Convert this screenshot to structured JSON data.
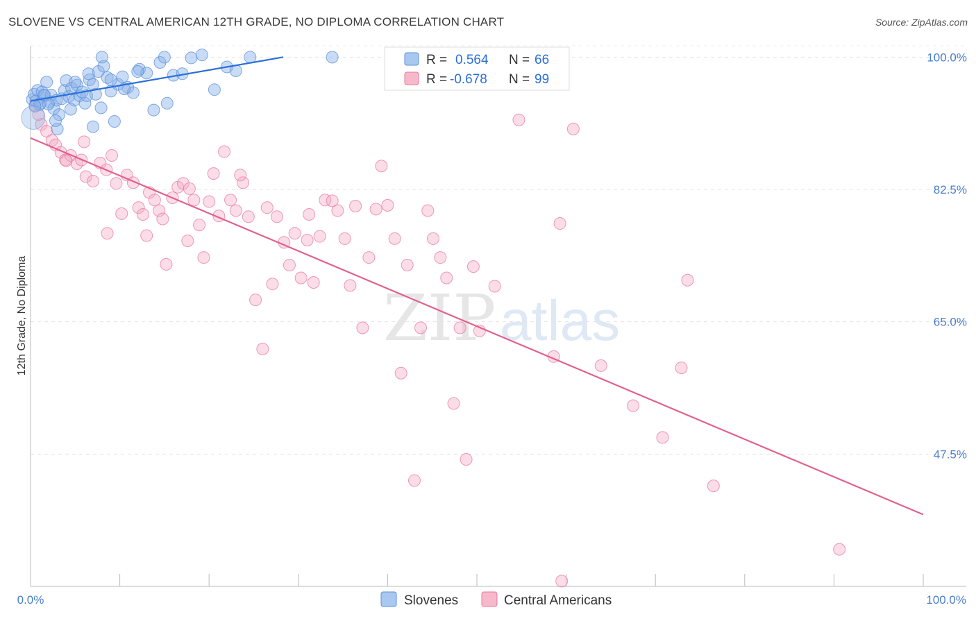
{
  "header": {
    "title": "SLOVENE VS CENTRAL AMERICAN 12TH GRADE, NO DIPLOMA CORRELATION CHART",
    "source": "Source: ZipAtlas.com"
  },
  "watermark": {
    "zip": "ZIP",
    "atlas": "atlas"
  },
  "legend": {
    "r_label": "R =",
    "n_label": "N =",
    "series": [
      {
        "name": "Slovenes",
        "r": "0.564",
        "n": "66",
        "color": "#5b8fdb",
        "fill": "#a9c8f0"
      },
      {
        "name": "Central Americans",
        "r": "-0.678",
        "n": "99",
        "color": "#e8799d",
        "fill": "#f6b9cc"
      }
    ]
  },
  "chart_data": {
    "type": "scatter",
    "title": "SLOVENE VS CENTRAL AMERICAN 12TH GRADE, NO DIPLOMA CORRELATION CHART",
    "xlabel": "",
    "ylabel": "12th Grade, No Diploma",
    "xlim": [
      0,
      100
    ],
    "ylim": [
      30,
      101.5
    ],
    "x_tick_labels": [
      "0.0%",
      "100.0%"
    ],
    "y_ticks": [
      47.5,
      65.0,
      82.5,
      100.0
    ],
    "y_tick_labels": [
      "47.5%",
      "65.0%",
      "82.5%",
      "100.0%"
    ],
    "grid": true,
    "legend_position": "top-center",
    "series": [
      {
        "name": "Slovenes",
        "color": "#5b8fdb",
        "trend": {
          "x": [
            0.0,
            28.3
          ],
          "y": [
            94.2,
            100.0
          ]
        },
        "points": [
          [
            0.2,
            94.4
          ],
          [
            0.4,
            95.1
          ],
          [
            0.6,
            94.2
          ],
          [
            0.8,
            95.6
          ],
          [
            1.1,
            93.9
          ],
          [
            1.3,
            95.4
          ],
          [
            1.6,
            94.9
          ],
          [
            1.8,
            96.7
          ],
          [
            2.1,
            94.1
          ],
          [
            2.3,
            95.0
          ],
          [
            2.6,
            93.2
          ],
          [
            2.9,
            94.3
          ],
          [
            3.2,
            92.4
          ],
          [
            3.5,
            94.5
          ],
          [
            3.8,
            95.6
          ],
          [
            4.0,
            96.9
          ],
          [
            4.3,
            94.8
          ],
          [
            4.6,
            95.9
          ],
          [
            4.9,
            94.3
          ],
          [
            5.2,
            96.3
          ],
          [
            5.5,
            94.9
          ],
          [
            5.8,
            95.4
          ],
          [
            6.1,
            93.9
          ],
          [
            6.3,
            94.9
          ],
          [
            6.6,
            97.0
          ],
          [
            7.0,
            96.4
          ],
          [
            7.3,
            95.1
          ],
          [
            7.6,
            98.1
          ],
          [
            7.9,
            93.3
          ],
          [
            8.2,
            98.8
          ],
          [
            8.6,
            97.3
          ],
          [
            9.0,
            95.5
          ],
          [
            9.4,
            91.5
          ],
          [
            9.8,
            96.4
          ],
          [
            10.3,
            97.4
          ],
          [
            10.9,
            96.0
          ],
          [
            11.5,
            95.3
          ],
          [
            12.2,
            98.4
          ],
          [
            13.0,
            97.9
          ],
          [
            13.8,
            93.0
          ],
          [
            14.5,
            99.3
          ],
          [
            15.3,
            93.9
          ],
          [
            16.0,
            97.6
          ],
          [
            17.0,
            97.8
          ],
          [
            18.0,
            99.9
          ],
          [
            19.2,
            100.3
          ],
          [
            20.6,
            95.7
          ],
          [
            22.0,
            98.7
          ],
          [
            23.0,
            98.2
          ],
          [
            24.6,
            100.0
          ],
          [
            33.8,
            100.0
          ],
          [
            8.0,
            100.0
          ],
          [
            15.0,
            100.0
          ],
          [
            7.0,
            90.8
          ],
          [
            4.5,
            93.1
          ],
          [
            3.0,
            90.5
          ],
          [
            1.0,
            93.7
          ],
          [
            10.5,
            95.8
          ],
          [
            6.5,
            97.8
          ],
          [
            2.0,
            93.8
          ],
          [
            5.0,
            96.7
          ],
          [
            9.0,
            97.0
          ],
          [
            12.0,
            98.1
          ],
          [
            0.5,
            93.5
          ],
          [
            1.5,
            95.0
          ],
          [
            2.8,
            91.6
          ]
        ]
      },
      {
        "name": "Central Americans",
        "color": "#e8799d",
        "trend": {
          "x": [
            0.0,
            100.0
          ],
          "y": [
            89.3,
            39.5
          ]
        },
        "points": [
          [
            0.5,
            93.6
          ],
          [
            0.9,
            92.4
          ],
          [
            1.2,
            91.1
          ],
          [
            1.8,
            90.2
          ],
          [
            2.4,
            89.0
          ],
          [
            2.8,
            88.4
          ],
          [
            3.4,
            87.4
          ],
          [
            3.9,
            86.4
          ],
          [
            4.5,
            87.0
          ],
          [
            5.2,
            85.9
          ],
          [
            5.7,
            86.4
          ],
          [
            6.2,
            84.2
          ],
          [
            7.0,
            83.6
          ],
          [
            7.8,
            86.0
          ],
          [
            8.5,
            85.1
          ],
          [
            9.1,
            87.0
          ],
          [
            9.6,
            83.3
          ],
          [
            10.2,
            79.3
          ],
          [
            10.8,
            84.4
          ],
          [
            11.5,
            83.4
          ],
          [
            12.1,
            80.1
          ],
          [
            12.6,
            79.2
          ],
          [
            13.3,
            82.1
          ],
          [
            13.9,
            81.1
          ],
          [
            14.4,
            79.7
          ],
          [
            14.8,
            78.6
          ],
          [
            15.2,
            72.6
          ],
          [
            15.9,
            81.4
          ],
          [
            16.5,
            82.8
          ],
          [
            17.1,
            83.3
          ],
          [
            17.6,
            75.7
          ],
          [
            18.3,
            81.1
          ],
          [
            18.9,
            77.8
          ],
          [
            19.4,
            73.5
          ],
          [
            20.0,
            80.9
          ],
          [
            20.5,
            84.6
          ],
          [
            21.1,
            79.0
          ],
          [
            21.7,
            87.5
          ],
          [
            22.4,
            81.1
          ],
          [
            23.0,
            79.7
          ],
          [
            23.8,
            83.4
          ],
          [
            24.4,
            78.9
          ],
          [
            25.2,
            67.9
          ],
          [
            26.0,
            61.4
          ],
          [
            26.5,
            80.1
          ],
          [
            27.1,
            70.0
          ],
          [
            27.6,
            78.9
          ],
          [
            28.4,
            75.5
          ],
          [
            29.0,
            72.5
          ],
          [
            29.6,
            76.7
          ],
          [
            30.3,
            70.8
          ],
          [
            31.0,
            75.8
          ],
          [
            31.7,
            70.2
          ],
          [
            32.4,
            76.3
          ],
          [
            33.0,
            81.1
          ],
          [
            33.8,
            81.0
          ],
          [
            34.4,
            79.7
          ],
          [
            35.2,
            76.0
          ],
          [
            35.8,
            69.8
          ],
          [
            36.4,
            80.3
          ],
          [
            37.2,
            64.2
          ],
          [
            37.9,
            73.5
          ],
          [
            38.7,
            79.9
          ],
          [
            39.3,
            85.6
          ],
          [
            40.0,
            80.4
          ],
          [
            40.8,
            76.0
          ],
          [
            41.5,
            58.2
          ],
          [
            42.2,
            72.5
          ],
          [
            43.0,
            44.0
          ],
          [
            43.7,
            64.2
          ],
          [
            44.5,
            79.7
          ],
          [
            45.1,
            76.0
          ],
          [
            45.9,
            73.5
          ],
          [
            46.6,
            70.8
          ],
          [
            47.4,
            54.2
          ],
          [
            48.1,
            64.2
          ],
          [
            48.8,
            46.8
          ],
          [
            49.6,
            72.3
          ],
          [
            50.3,
            63.8
          ],
          [
            52.0,
            69.7
          ],
          [
            54.7,
            91.7
          ],
          [
            58.6,
            60.4
          ],
          [
            59.3,
            78.0
          ],
          [
            60.8,
            90.5
          ],
          [
            63.9,
            59.2
          ],
          [
            67.5,
            53.9
          ],
          [
            70.8,
            49.7
          ],
          [
            72.9,
            58.9
          ],
          [
            73.6,
            70.5
          ],
          [
            76.5,
            43.3
          ],
          [
            90.6,
            34.9
          ],
          [
            59.5,
            30.7
          ],
          [
            31.2,
            79.2
          ],
          [
            23.5,
            84.4
          ],
          [
            17.8,
            82.6
          ],
          [
            13.0,
            76.4
          ],
          [
            8.6,
            76.7
          ],
          [
            6.0,
            88.8
          ],
          [
            4.0,
            86.3
          ]
        ]
      }
    ]
  }
}
